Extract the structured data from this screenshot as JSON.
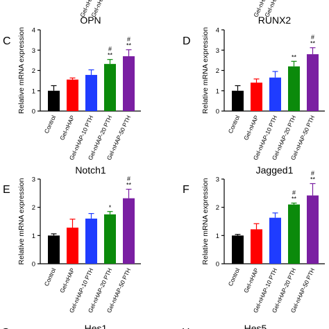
{
  "colors": {
    "Control": "#000000",
    "Gel-nHAP": "#ff0000",
    "Gel-nHAP-10 PTH": "#1f3cff",
    "Gel-nHAP-20 PTH": "#0b8a0b",
    "Gel-nHAP-50 PTH": "#7a1fa2"
  },
  "top_cut_labels": [
    "Gel-nHAP-20 PTH",
    "Gel-nHAP-50 PTH",
    "Gel-nHAP-20 PTH",
    "Gel-nHAP-50 PTH"
  ],
  "bottom_cut": [
    {
      "letter": "G",
      "title": "Hes1"
    },
    {
      "letter": "H",
      "title": "Hes5"
    }
  ],
  "chart_data": [
    {
      "type": "bar",
      "letter": "C",
      "title": "OPN",
      "ylabel": "Relative mRNA expression",
      "categories": [
        "Control",
        "Gel-nHAP",
        "Gel-nHAP-10 PTH",
        "Gel-nHAP-20 PTH",
        "Gel-nHAP-50 PTH"
      ],
      "values": [
        1.0,
        1.55,
        1.78,
        2.32,
        2.7
      ],
      "errors": [
        0.25,
        0.08,
        0.25,
        0.22,
        0.32
      ],
      "annotations": [
        "",
        "",
        "",
        "#\n**",
        "#\n**"
      ],
      "ylim": [
        0,
        4
      ],
      "yticks": [
        0,
        1,
        2,
        3,
        4
      ]
    },
    {
      "type": "bar",
      "letter": "D",
      "title": "RUNX2",
      "ylabel": "Relative mRNA expression",
      "categories": [
        "Control",
        "Gel-nHAP",
        "Gel-nHAP-10 PTH",
        "Gel-nHAP-20 PTH",
        "Gel-nHAP-50 PTH"
      ],
      "values": [
        1.0,
        1.4,
        1.65,
        2.2,
        2.8
      ],
      "errors": [
        0.25,
        0.18,
        0.3,
        0.25,
        0.32
      ],
      "annotations": [
        "",
        "",
        "",
        "**",
        "#\n**"
      ],
      "ylim": [
        0,
        4
      ],
      "yticks": [
        0,
        1,
        2,
        3,
        4
      ]
    },
    {
      "type": "bar",
      "letter": "E",
      "title": "Notch1",
      "ylabel": "Relative mRNA expression",
      "categories": [
        "Control",
        "Gel-nHAP",
        "Gel-nHAP-10 PTH",
        "Gel-nHAP-20 PTH",
        "Gel-nHAP-50 PTH"
      ],
      "values": [
        1.0,
        1.28,
        1.6,
        1.75,
        2.32
      ],
      "errors": [
        0.06,
        0.3,
        0.18,
        0.1,
        0.32
      ],
      "annotations": [
        "",
        "",
        "",
        "*",
        "#\n**"
      ],
      "ylim": [
        0,
        3
      ],
      "yticks": [
        0,
        1,
        2,
        3
      ]
    },
    {
      "type": "bar",
      "letter": "F",
      "title": "Jagged1",
      "ylabel": "Relative mRNA expression",
      "categories": [
        "Control",
        "Gel-nHAP",
        "Gel-nHAP-10 PTH",
        "Gel-nHAP-20 PTH",
        "Gel-nHAP-50 PTH"
      ],
      "values": [
        1.0,
        1.22,
        1.63,
        2.1,
        2.42
      ],
      "errors": [
        0.04,
        0.2,
        0.17,
        0.05,
        0.42
      ],
      "annotations": [
        "",
        "",
        "",
        "#\n**",
        "#\n**"
      ],
      "ylim": [
        0,
        3
      ],
      "yticks": [
        0,
        1,
        2,
        3
      ]
    }
  ]
}
